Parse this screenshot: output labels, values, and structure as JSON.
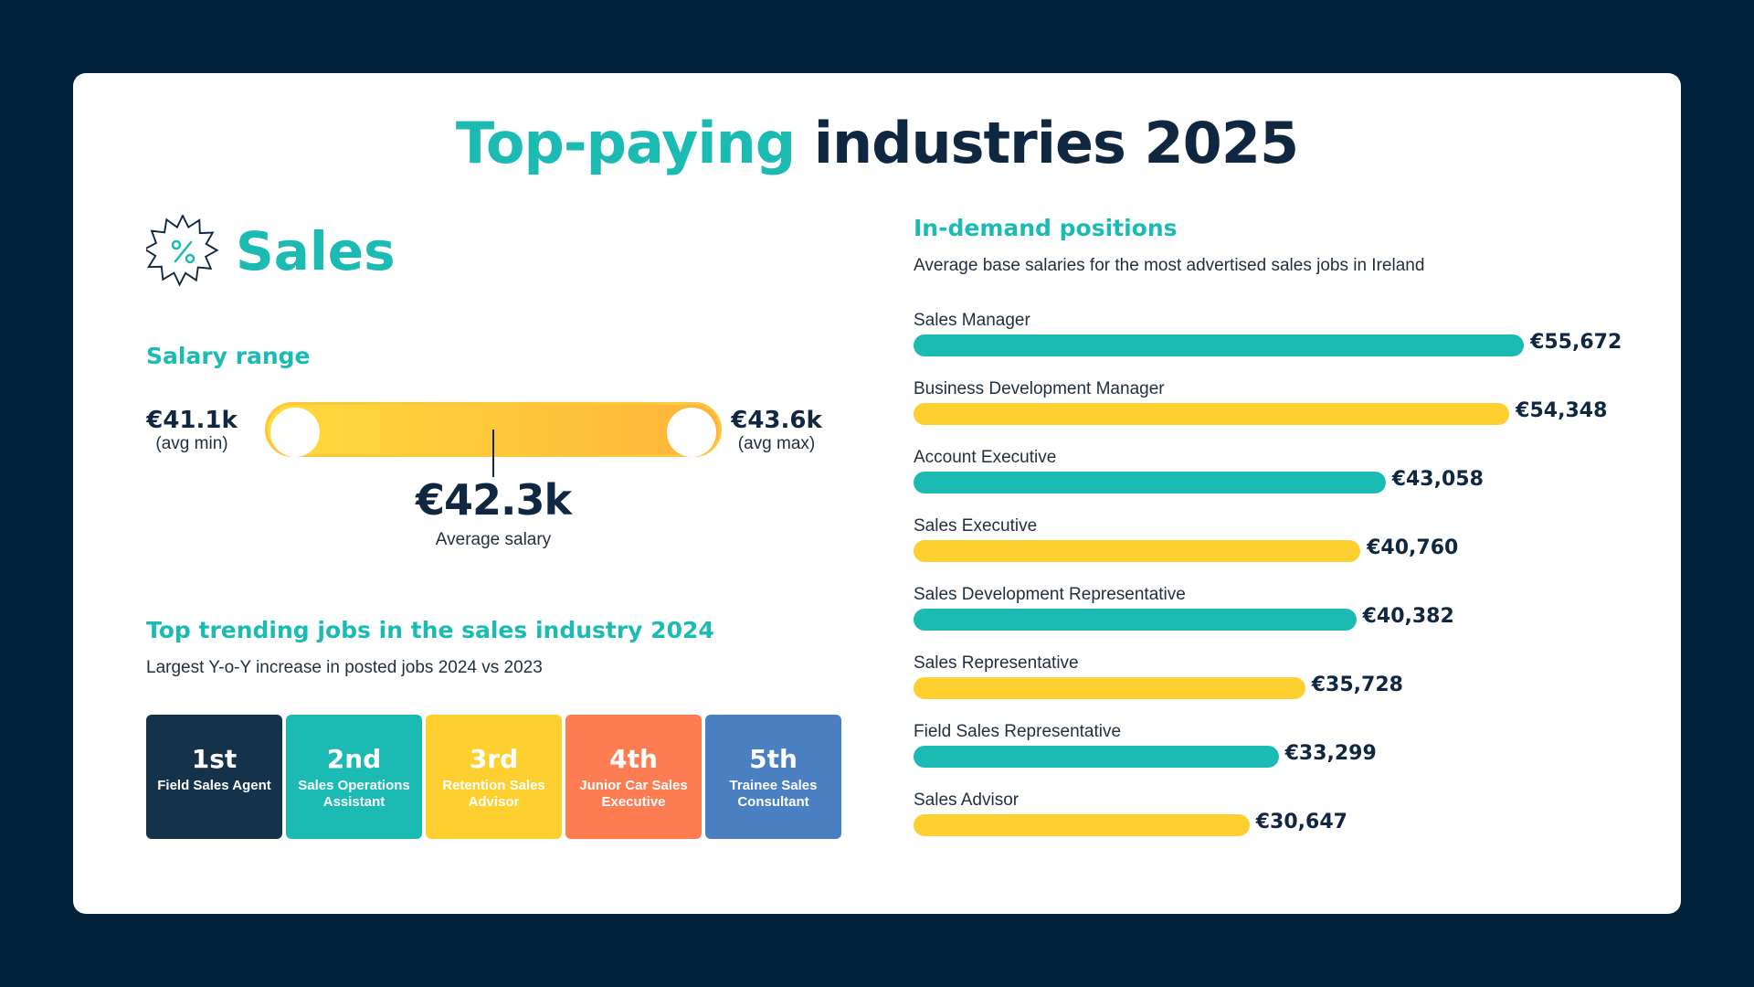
{
  "title": {
    "accent": "Top-paying",
    "rest": " industries 2025"
  },
  "industry": {
    "name": "Sales",
    "icon": "percent-badge-icon"
  },
  "salary_range": {
    "heading": "Salary range",
    "min_value": "€41.1k",
    "min_label": "(avg min)",
    "max_value": "€43.6k",
    "max_label": "(avg max)",
    "average_value": "€42.3k",
    "average_label": "Average salary"
  },
  "trending": {
    "heading": "Top trending jobs in the sales industry 2024",
    "subtitle": "Largest Y-o-Y increase in posted jobs 2024 vs 2023",
    "jobs": [
      {
        "rank": "1st",
        "name": "Field Sales Agent",
        "color": "#14324a"
      },
      {
        "rank": "2nd",
        "name": "Sales Operations Assistant",
        "color": "#1bbbb4"
      },
      {
        "rank": "3rd",
        "name": "Retention Sales Advisor",
        "color": "#fed02f"
      },
      {
        "rank": "4th",
        "name": "Junior Car Sales Executive",
        "color": "#fe7c52"
      },
      {
        "rank": "5th",
        "name": "Trainee Sales Consultant",
        "color": "#4a7fc1"
      }
    ]
  },
  "positions": {
    "heading": "In-demand positions",
    "subtitle": "Average base salaries for the most advertised sales jobs in Ireland"
  },
  "colors": {
    "teal": "#1bbbb4",
    "yellow": "#fed02f",
    "navy": "#02213a"
  },
  "chart_data": {
    "type": "bar",
    "orientation": "horizontal",
    "categories": [
      "Sales Manager",
      "Business Development Manager",
      "Account Executive",
      "Sales Executive",
      "Sales Development Representative",
      "Sales Representative",
      "Field Sales Representative",
      "Sales Advisor"
    ],
    "values": [
      55672,
      54348,
      43058,
      40760,
      40382,
      35728,
      33299,
      30647
    ],
    "value_labels": [
      "€55,672",
      "€54,348",
      "€43,058",
      "€40,760",
      "€40,382",
      "€35,728",
      "€33,299",
      "€30,647"
    ],
    "bar_colors": [
      "#1bbbb4",
      "#fed02f",
      "#1bbbb4",
      "#fed02f",
      "#1bbbb4",
      "#fed02f",
      "#1bbbb4",
      "#fed02f"
    ],
    "title": "In-demand positions",
    "subtitle": "Average base salaries for the most advertised sales jobs in Ireland",
    "grid": false,
    "legend": "none"
  }
}
